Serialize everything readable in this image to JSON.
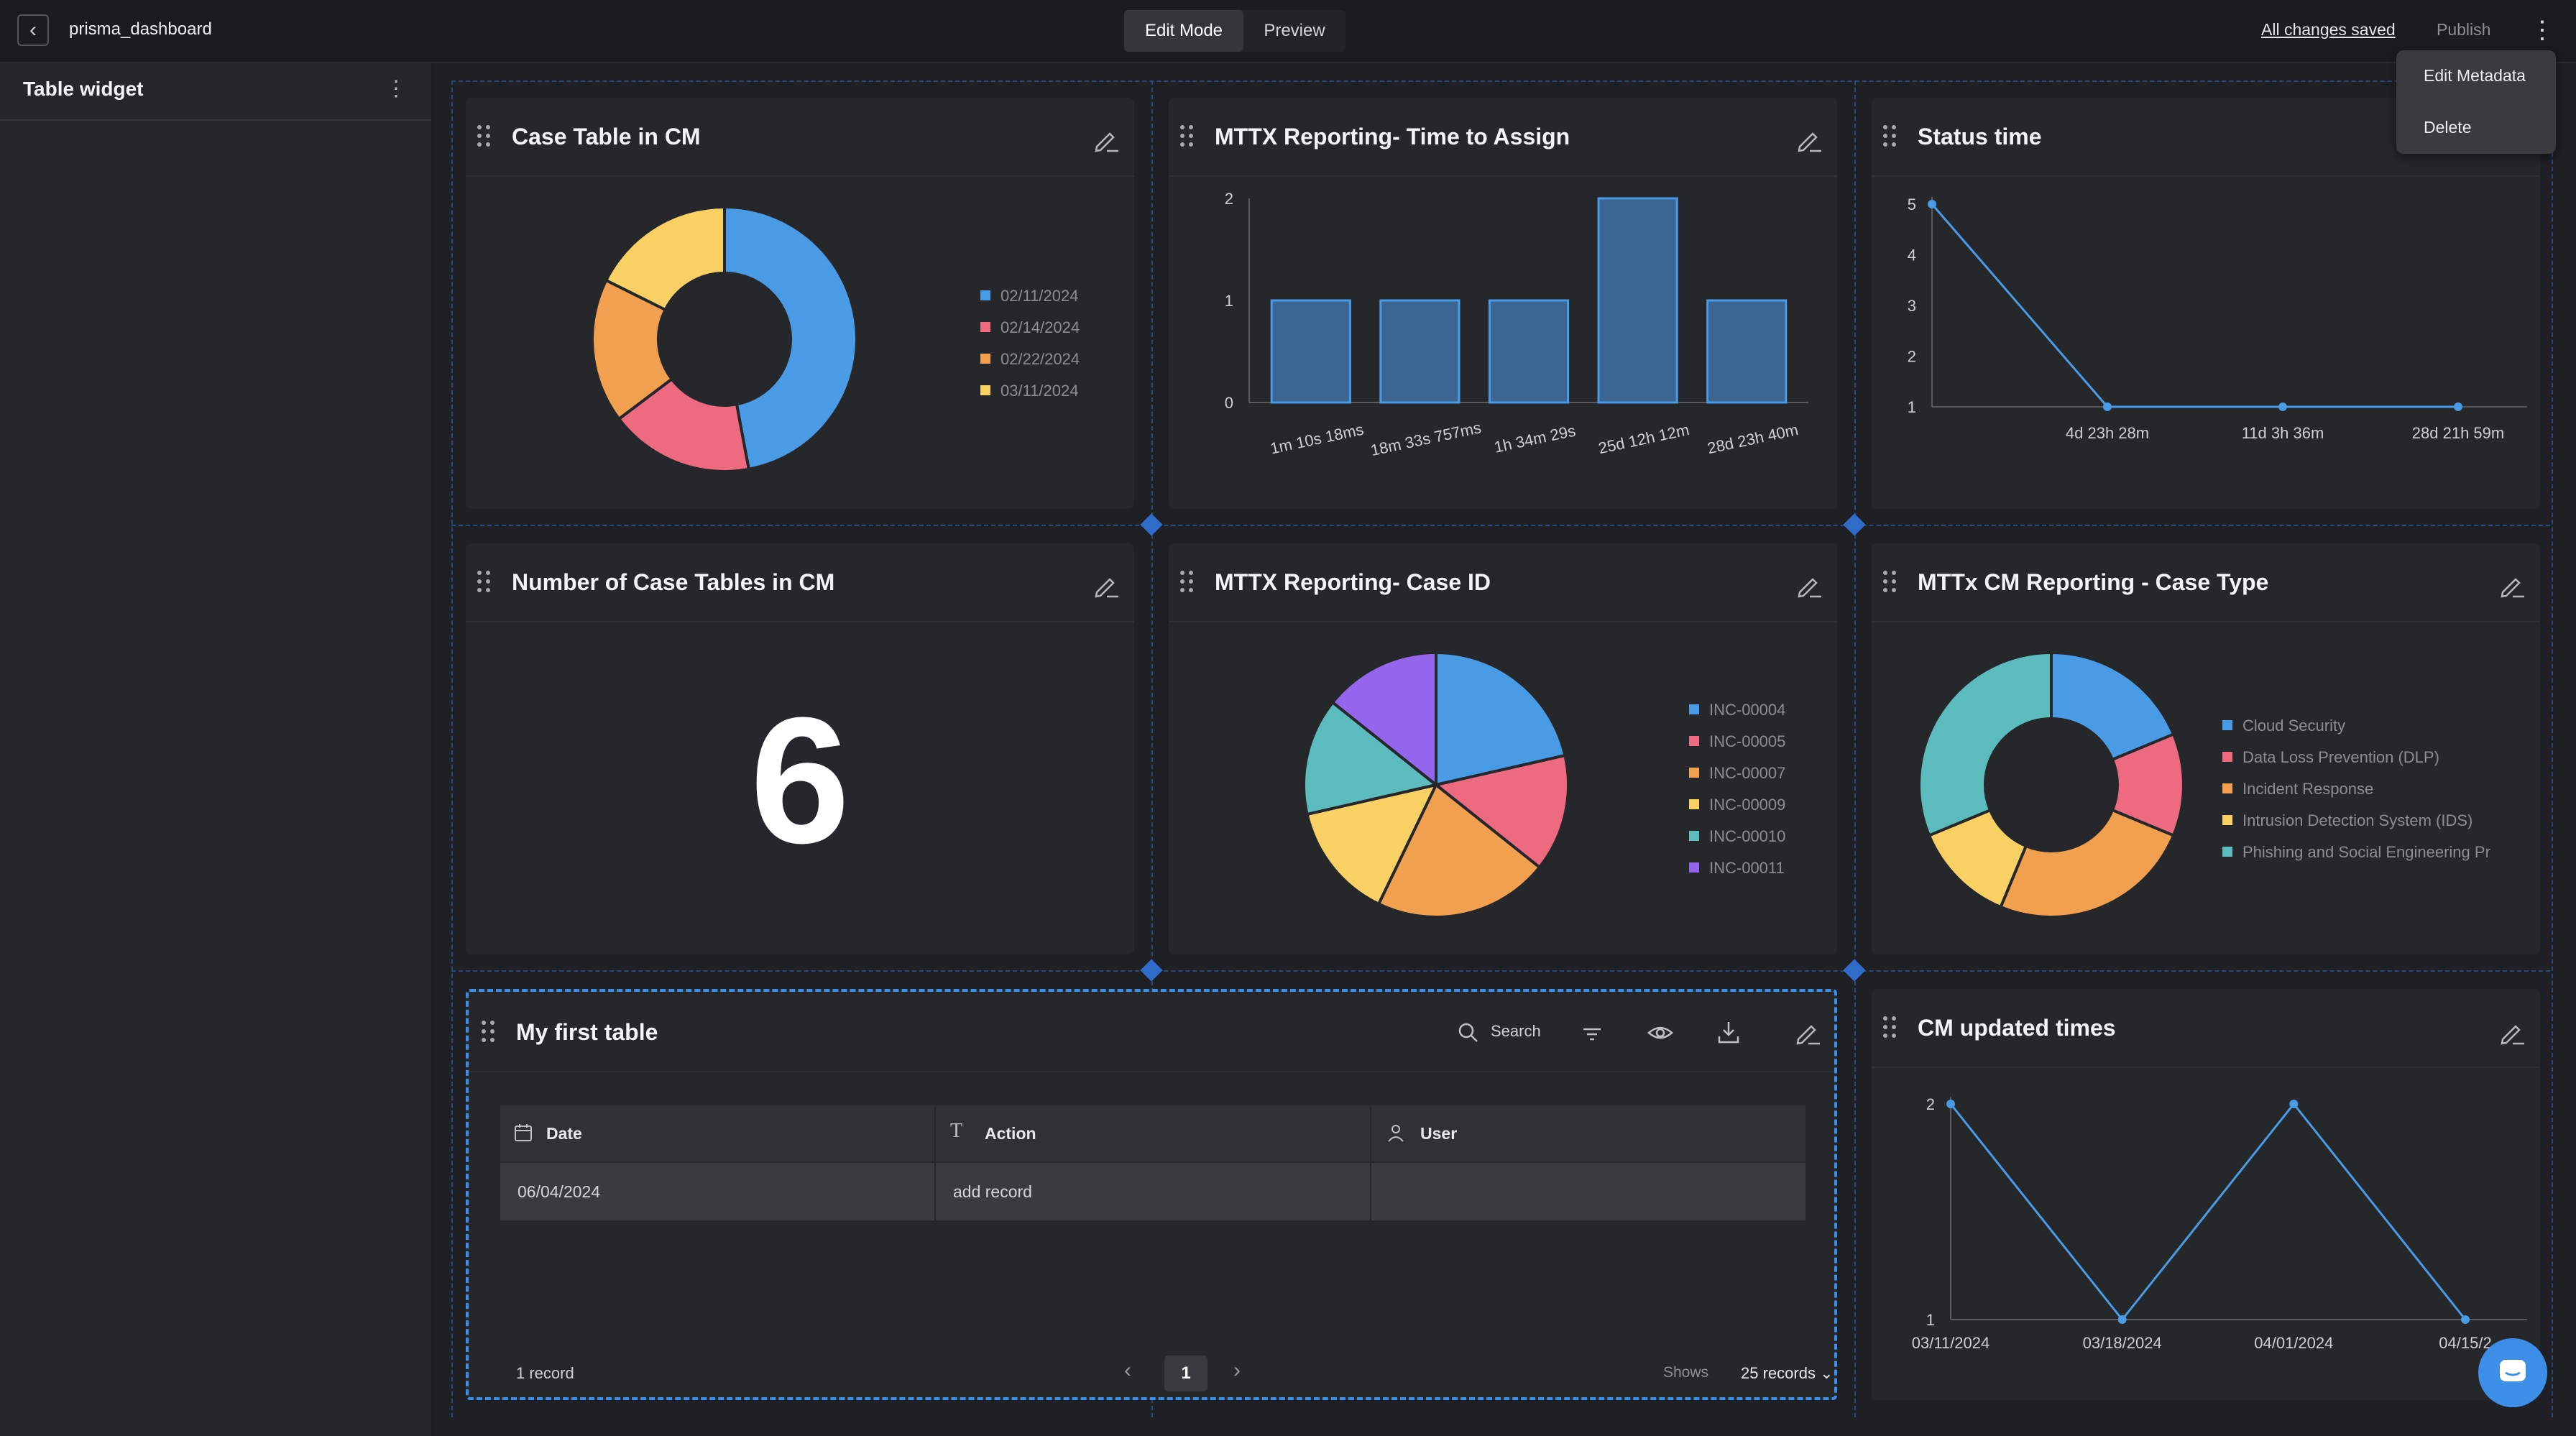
{
  "topbar": {
    "app_title": "prisma_dashboard",
    "modes": [
      "Edit Mode",
      "Preview"
    ],
    "saved_status": "All changes saved",
    "publish_label": "Publish"
  },
  "menu": {
    "items": [
      "Edit Metadata",
      "Delete"
    ]
  },
  "sidebar": {
    "title": "Table widget"
  },
  "widgets": {
    "case_table": {
      "title": "Case Table in CM",
      "chart_data": {
        "type": "pie",
        "donut": true,
        "labels": [
          "02/11/2024",
          "02/14/2024",
          "02/22/2024",
          "03/11/2024"
        ],
        "values": [
          4,
          1.5,
          1.5,
          1.5
        ],
        "colors": [
          "#4a9be6",
          "#ee6a80",
          "#f1a04f",
          "#f8d064"
        ]
      }
    },
    "mttx_assign": {
      "title": "MTTX Reporting- Time to Assign",
      "chart_data": {
        "type": "bar",
        "categories": [
          "1m 10s 18ms",
          "18m 33s 757ms",
          "1h 34m 29s",
          "25d 12h 12m",
          "28d 23h 40m"
        ],
        "values": [
          1,
          1,
          1,
          2,
          1
        ],
        "yticks": [
          "0",
          "1",
          "2"
        ],
        "ylim": [
          0,
          2
        ]
      }
    },
    "status_time": {
      "title": "Status time",
      "chart_data": {
        "type": "line",
        "x": [
          "",
          "4d 23h 28m",
          "11d 3h 36m",
          "28d 21h 59m"
        ],
        "values": [
          5,
          1,
          1,
          1
        ],
        "yticks": [
          "1",
          "2",
          "3",
          "4",
          "5"
        ],
        "ylim": [
          1,
          5
        ]
      }
    },
    "number_case_tables": {
      "title": "Number of Case Tables in CM",
      "value": "6"
    },
    "case_id": {
      "title": "MTTX Reporting- Case ID",
      "chart_data": {
        "type": "pie",
        "labels": [
          "INC-00004",
          "INC-00005",
          "INC-00007",
          "INC-00009",
          "INC-00010",
          "INC-00011"
        ],
        "values": [
          1.5,
          1,
          1.5,
          1,
          1,
          1
        ],
        "colors": [
          "#4a9be6",
          "#ee6a80",
          "#f1a04f",
          "#f8d064",
          "#5cbcbd",
          "#9466ee"
        ]
      }
    },
    "case_type": {
      "title": "MTTx CM Reporting - Case Type",
      "chart_data": {
        "type": "pie",
        "donut": true,
        "labels": [
          "Cloud Security",
          "Data Loss Prevention (DLP)",
          "Incident Response",
          "Intrusion Detection System (IDS)",
          "Phishing and Social Engineering Pr"
        ],
        "values": [
          1.5,
          1,
          2,
          1,
          2.5
        ],
        "colors": [
          "#4a9be6",
          "#ee6a80",
          "#f1a04f",
          "#f8d064",
          "#5cbcbd"
        ]
      }
    },
    "my_table": {
      "title": "My first table",
      "search_label": "Search",
      "columns": [
        "Date",
        "Action",
        "User"
      ],
      "rows": [
        [
          "06/04/2024",
          "add record",
          ""
        ]
      ],
      "record_count": "1 record",
      "page": "1",
      "shows_label": "Shows",
      "page_size": "25 records"
    },
    "cm_updated": {
      "title": "CM updated times",
      "chart_data": {
        "type": "line",
        "x": [
          "03/11/2024",
          "03/18/2024",
          "04/01/2024",
          "04/15/2"
        ],
        "values": [
          2,
          1,
          2,
          1
        ],
        "yticks": [
          "1",
          "2"
        ],
        "ylim": [
          1,
          2
        ]
      }
    }
  },
  "colors": {
    "accent": "#3d8ee6",
    "bar": "#3b6592",
    "line": "#4a9be6"
  }
}
